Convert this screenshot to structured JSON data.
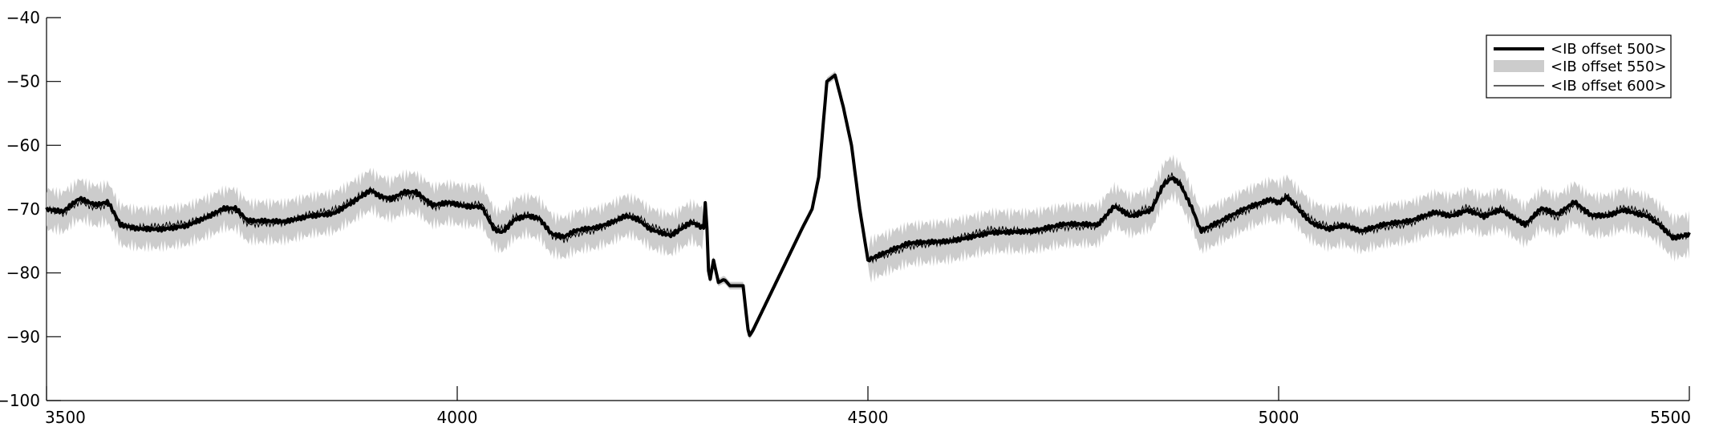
{
  "chart_data": {
    "type": "line",
    "title": "",
    "xlabel": "",
    "ylabel": "",
    "xlim": [
      3500,
      5500
    ],
    "ylim": [
      -100,
      -40
    ],
    "xticks": [
      3500,
      4000,
      4500,
      5000,
      5500
    ],
    "yticks": [
      -40,
      -50,
      -60,
      -70,
      -80,
      -90,
      -100
    ],
    "grid": false,
    "legend_position": "top-right",
    "series": [
      {
        "name": "<IB offset 500>",
        "style": "thick-black-line",
        "color": "#000000",
        "x": [
          3500,
          3520,
          3540,
          3560,
          3575,
          3590,
          3610,
          3640,
          3670,
          3700,
          3715,
          3730,
          3745,
          3760,
          3790,
          3820,
          3850,
          3870,
          3895,
          3905,
          3920,
          3935,
          3950,
          3970,
          3990,
          4010,
          4030,
          4045,
          4055,
          4070,
          4085,
          4100,
          4115,
          4130,
          4145,
          4170,
          4190,
          4205,
          4220,
          4235,
          4260,
          4285,
          4300,
          4303,
          4305,
          4308,
          4312,
          4318,
          4325,
          4332,
          4340,
          4348,
          4355,
          4360,
          4390,
          4420,
          4432,
          4440,
          4450,
          4460,
          4470,
          4480,
          4490,
          4500,
          4520,
          4550,
          4600,
          4650,
          4700,
          4720,
          4740,
          4760,
          4780,
          4800,
          4820,
          4845,
          4860,
          4870,
          4880,
          4895,
          4905,
          4930,
          4960,
          4990,
          5000,
          5010,
          5040,
          5060,
          5080,
          5100,
          5130,
          5160,
          5190,
          5210,
          5230,
          5250,
          5270,
          5300,
          5320,
          5340,
          5360,
          5380,
          5400,
          5420,
          5450,
          5465,
          5480,
          5500
        ],
        "values": [
          -70,
          -70.5,
          -68.5,
          -69.5,
          -69,
          -72.5,
          -73,
          -73,
          -72.5,
          -71,
          -70,
          -70,
          -72,
          -72,
          -72,
          -71,
          -70.5,
          -69,
          -67,
          -68,
          -68.5,
          -67.5,
          -67.5,
          -69.5,
          -69,
          -69.5,
          -69.5,
          -73,
          -73.5,
          -71.5,
          -71,
          -71.5,
          -74,
          -74.5,
          -73.5,
          -73,
          -72,
          -71,
          -71.5,
          -73,
          -74,
          -72,
          -73,
          -67,
          -79,
          -81,
          -78,
          -81.5,
          -81,
          -82,
          -82,
          -82,
          -90,
          -89,
          -81,
          -73,
          -70,
          -65,
          -50,
          -49,
          -54,
          -60,
          -70,
          -78,
          -77,
          -75.5,
          -75,
          -73.5,
          -73.5,
          -73,
          -72.5,
          -72.5,
          -72.5,
          -69.5,
          -71,
          -70,
          -66,
          -65,
          -66,
          -70,
          -73.5,
          -72,
          -70,
          -68.5,
          -69,
          -68,
          -72,
          -73,
          -72.5,
          -73.5,
          -72.5,
          -72,
          -70.5,
          -71,
          -70,
          -71,
          -70,
          -72.5,
          -70,
          -71,
          -69,
          -71,
          -71,
          -70,
          -71,
          -72.5,
          -74.5,
          -74
        ]
      },
      {
        "name": "<IB offset 550>",
        "style": "gray-band",
        "color": "#cccccc"
      },
      {
        "name": "<IB offset 600>",
        "style": "thin-black-line",
        "color": "#000000"
      }
    ]
  }
}
